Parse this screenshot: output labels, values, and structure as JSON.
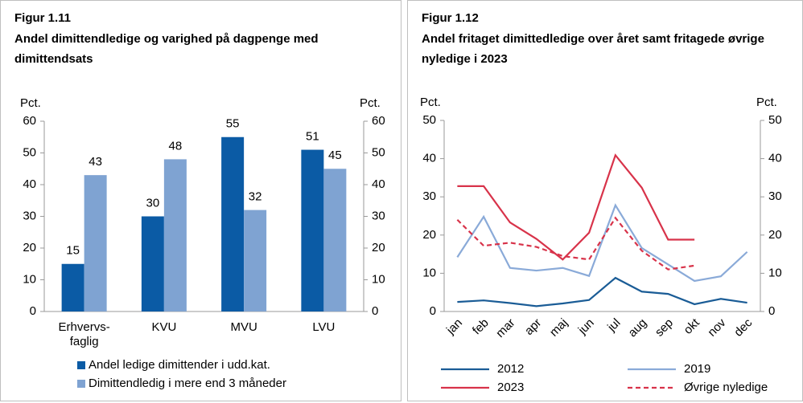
{
  "chart_data": [
    {
      "type": "bar",
      "title": "Figur 1.11",
      "subtitle": "Andel dimittendledige og varighed på dagpenge med dimittendsats",
      "ylabel": "Pct.",
      "y2label": "Pct.",
      "categories": [
        "Erhvervs-\nfaglig",
        "KVU",
        "MVU",
        "LVU"
      ],
      "series": [
        {
          "name": "Andel ledige dimittender i udd.kat.",
          "color": "#0b5ba5",
          "values": [
            15,
            30,
            55,
            51
          ]
        },
        {
          "name": "Dimittendledig i mere end 3 måneder",
          "color": "#7fa3d2",
          "values": [
            43,
            48,
            32,
            45
          ]
        }
      ],
      "ylim": [
        0,
        60
      ],
      "yticks": [
        0,
        10,
        20,
        30,
        40,
        50,
        60
      ],
      "y2lim": [
        0,
        60
      ],
      "y2ticks": [
        0,
        10,
        20,
        30,
        40,
        50,
        60
      ]
    },
    {
      "type": "line",
      "title": "Figur 1.12",
      "subtitle": "Andel fritaget dimittedledige over året samt fritagede øvrige nyledige i 2023",
      "ylabel": "Pct.",
      "y2label": "Pct.",
      "categories": [
        "jan",
        "feb",
        "mar",
        "apr",
        "maj",
        "jun",
        "jul",
        "aug",
        "sep",
        "okt",
        "nov",
        "dec"
      ],
      "series": [
        {
          "name": "2012",
          "color": "#1a5c96",
          "dashed": false,
          "values": [
            2.5,
            2.9,
            2.2,
            1.4,
            2.1,
            3,
            8.8,
            5.2,
            4.6,
            1.9,
            3.3,
            2.3
          ]
        },
        {
          "name": "2019",
          "color": "#8aaad8",
          "dashed": false,
          "values": [
            14.2,
            24.8,
            11.4,
            10.7,
            11.4,
            9.3,
            27.8,
            16.6,
            12.3,
            8,
            9.2,
            15.6
          ]
        },
        {
          "name": "2023",
          "color": "#d8334a",
          "dashed": false,
          "values": [
            32.8,
            32.8,
            23.3,
            19,
            13.6,
            20.6,
            40.9,
            32.4,
            18.8,
            18.8,
            null,
            null
          ]
        },
        {
          "name": "Øvrige nyledige",
          "color": "#d8334a",
          "dashed": true,
          "values": [
            24,
            17.2,
            18,
            16.9,
            14.5,
            13.6,
            24.5,
            15.9,
            11,
            12,
            null,
            null
          ]
        }
      ],
      "ylim": [
        0,
        50
      ],
      "yticks": [
        0,
        10,
        20,
        30,
        40,
        50
      ],
      "y2lim": [
        0,
        50
      ],
      "y2ticks": [
        0,
        10,
        20,
        30,
        40,
        50
      ]
    }
  ]
}
